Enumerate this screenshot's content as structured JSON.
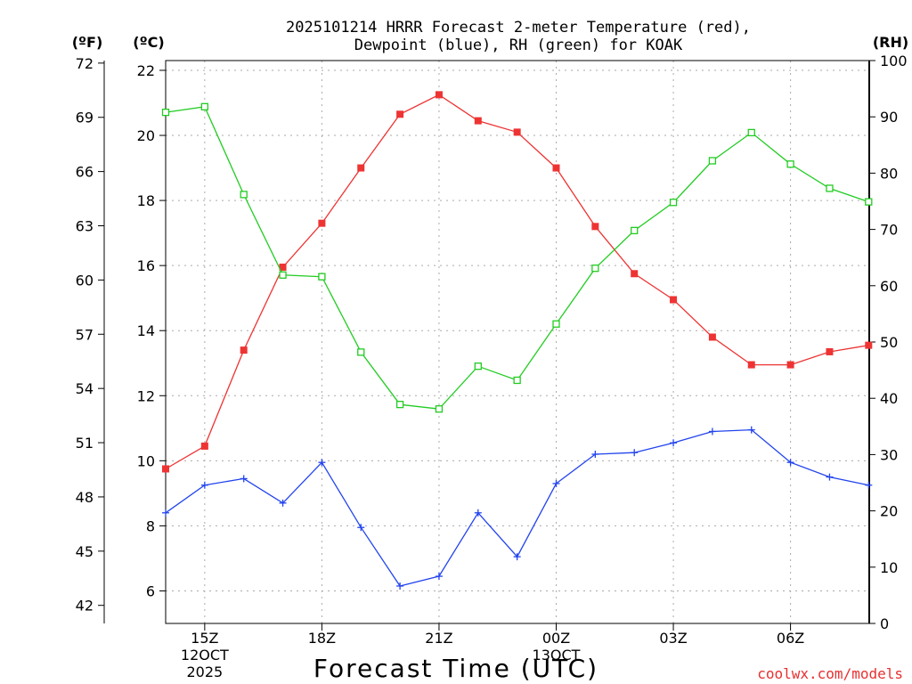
{
  "chart_data": {
    "type": "line",
    "title_line1": "2025101214 HRRR Forecast 2-meter Temperature (red),",
    "title_line2": "Dewpoint (blue), RH (green) for KOAK",
    "xlabel": "Forecast Time (UTC)",
    "unit_labels": {
      "fahrenheit": "(ºF)",
      "celsius": "(ºC)",
      "rh": "(RH)"
    },
    "watermark": "coolwx.com/models",
    "x_hours": [
      0,
      1,
      2,
      3,
      4,
      5,
      6,
      7,
      8,
      9,
      10,
      11,
      12,
      13,
      14,
      15,
      16,
      17,
      18
    ],
    "x_ticks": [
      {
        "h": 1,
        "label": "15Z",
        "sub1": "12OCT",
        "sub2": "2025"
      },
      {
        "h": 4,
        "label": "18Z",
        "sub1": "",
        "sub2": ""
      },
      {
        "h": 7,
        "label": "21Z",
        "sub1": "",
        "sub2": ""
      },
      {
        "h": 10,
        "label": "00Z",
        "sub1": "13OCT",
        "sub2": ""
      },
      {
        "h": 13,
        "label": "03Z",
        "sub1": "",
        "sub2": ""
      },
      {
        "h": 16,
        "label": "06Z",
        "sub1": "",
        "sub2": ""
      }
    ],
    "celsius_axis": {
      "range": [
        5,
        22.3
      ],
      "ticks": [
        "6",
        "8",
        "10",
        "12",
        "14",
        "16",
        "18",
        "20",
        "22"
      ]
    },
    "fahrenheit_axis": {
      "ticks": [
        "42",
        "45",
        "48",
        "51",
        "54",
        "57",
        "60",
        "63",
        "66",
        "69",
        "72"
      ]
    },
    "rh_axis": {
      "range": [
        0,
        100
      ],
      "ticks": [
        "0",
        "10",
        "20",
        "30",
        "40",
        "50",
        "60",
        "70",
        "80",
        "90",
        "100"
      ]
    },
    "series": [
      {
        "name": "Temperature",
        "axis": "celsius",
        "color": "#ee3333",
        "marker": "filled-square",
        "values": [
          9.75,
          10.45,
          13.4,
          15.95,
          17.3,
          19.0,
          20.65,
          21.25,
          20.45,
          20.1,
          19.0,
          17.2,
          15.75,
          14.95,
          13.8,
          12.95,
          12.95,
          13.35,
          13.55
        ]
      },
      {
        "name": "Dewpoint",
        "axis": "celsius",
        "color": "#2244ee",
        "marker": "plus",
        "values": [
          8.4,
          9.25,
          9.45,
          8.7,
          9.95,
          7.95,
          6.15,
          6.45,
          8.4,
          7.05,
          9.3,
          10.2,
          10.25,
          10.55,
          10.9,
          10.95,
          9.95,
          9.5,
          9.25
        ]
      },
      {
        "name": "RH",
        "axis": "rh",
        "color": "#22cc22",
        "marker": "open-square",
        "values": [
          90.8,
          91.8,
          76.2,
          61.9,
          61.6,
          48.2,
          38.9,
          38.1,
          45.7,
          43.2,
          53.2,
          63.1,
          69.8,
          74.8,
          82.2,
          87.2,
          81.6,
          77.3,
          74.9
        ]
      }
    ]
  }
}
